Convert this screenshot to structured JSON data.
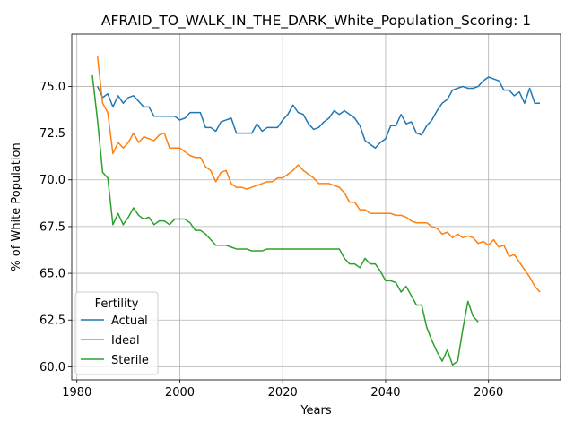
{
  "chart_data": {
    "type": "line",
    "title": "AFRAID_TO_WALK_IN_THE_DARK_White_Population_Scoring: 1",
    "xlabel": "Years",
    "ylabel": "% of White Population",
    "xlim": [
      1979,
      2074
    ],
    "ylim": [
      59.3,
      77.8
    ],
    "xticks": [
      1980,
      2000,
      2020,
      2040,
      2060
    ],
    "yticks": [
      60.0,
      62.5,
      65.0,
      67.5,
      70.0,
      72.5,
      75.0
    ],
    "xtick_labels": [
      "1980",
      "2000",
      "2020",
      "2040",
      "2060"
    ],
    "ytick_labels": [
      "60.0",
      "62.5",
      "65.0",
      "67.5",
      "70.0",
      "72.5",
      "75.0"
    ],
    "grid": true,
    "legend_title": "Fertility",
    "legend_position": "lower-left",
    "series": [
      {
        "name": "Actual",
        "color": "#1f77b4",
        "x": [
          1984,
          1985,
          1986,
          1987,
          1988,
          1989,
          1990,
          1991,
          1992,
          1993,
          1994,
          1995,
          1996,
          1997,
          1998,
          1999,
          2000,
          2001,
          2002,
          2003,
          2004,
          2005,
          2006,
          2007,
          2008,
          2009,
          2010,
          2011,
          2012,
          2013,
          2014,
          2015,
          2016,
          2017,
          2018,
          2019,
          2020,
          2021,
          2022,
          2023,
          2024,
          2025,
          2026,
          2027,
          2028,
          2029,
          2030,
          2031,
          2032,
          2033,
          2034,
          2035,
          2036,
          2037,
          2038,
          2039,
          2040,
          2041,
          2042,
          2043,
          2044,
          2045,
          2046,
          2047,
          2048,
          2049,
          2050,
          2051,
          2052,
          2053,
          2054,
          2055,
          2056,
          2057,
          2058,
          2059,
          2060,
          2061,
          2062,
          2063,
          2064,
          2065,
          2066,
          2067,
          2068,
          2069,
          2070
        ],
        "y": [
          75.0,
          74.4,
          74.6,
          73.9,
          74.5,
          74.1,
          74.4,
          74.5,
          74.2,
          73.9,
          73.9,
          73.4,
          73.4,
          73.4,
          73.4,
          73.4,
          73.2,
          73.3,
          73.6,
          73.6,
          73.6,
          72.8,
          72.8,
          72.6,
          73.1,
          73.2,
          73.3,
          72.5,
          72.5,
          72.5,
          72.5,
          73.0,
          72.6,
          72.8,
          72.8,
          72.8,
          73.2,
          73.5,
          74.0,
          73.6,
          73.5,
          73.0,
          72.7,
          72.8,
          73.1,
          73.3,
          73.7,
          73.5,
          73.7,
          73.5,
          73.3,
          72.9,
          72.1,
          71.9,
          71.7,
          72.0,
          72.2,
          72.9,
          72.9,
          73.5,
          73.0,
          73.1,
          72.5,
          72.4,
          72.9,
          73.2,
          73.7,
          74.1,
          74.3,
          74.8,
          74.9,
          75.0,
          74.9,
          74.9,
          75.0,
          75.3,
          75.5,
          75.4,
          75.3,
          74.8,
          74.8,
          74.5,
          74.7,
          74.1,
          74.9,
          74.1,
          74.1
        ]
      },
      {
        "name": "Ideal",
        "color": "#ff7f0e",
        "x": [
          1984,
          1985,
          1986,
          1987,
          1988,
          1989,
          1990,
          1991,
          1992,
          1993,
          1994,
          1995,
          1996,
          1997,
          1998,
          1999,
          2000,
          2001,
          2002,
          2003,
          2004,
          2005,
          2006,
          2007,
          2008,
          2009,
          2010,
          2011,
          2012,
          2013,
          2014,
          2015,
          2016,
          2017,
          2018,
          2019,
          2020,
          2021,
          2022,
          2023,
          2024,
          2025,
          2026,
          2027,
          2028,
          2029,
          2030,
          2031,
          2032,
          2033,
          2034,
          2035,
          2036,
          2037,
          2038,
          2039,
          2040,
          2041,
          2042,
          2043,
          2044,
          2045,
          2046,
          2047,
          2048,
          2049,
          2050,
          2051,
          2052,
          2053,
          2054,
          2055,
          2056,
          2057,
          2058,
          2059,
          2060,
          2061,
          2062,
          2063,
          2064,
          2065,
          2066,
          2067,
          2068,
          2069,
          2070
        ],
        "y": [
          76.6,
          74.1,
          73.6,
          71.4,
          72.0,
          71.7,
          72.0,
          72.5,
          72.0,
          72.3,
          72.2,
          72.1,
          72.4,
          72.5,
          71.7,
          71.7,
          71.7,
          71.5,
          71.3,
          71.2,
          71.2,
          70.7,
          70.5,
          69.9,
          70.4,
          70.5,
          69.8,
          69.6,
          69.6,
          69.5,
          69.6,
          69.7,
          69.8,
          69.9,
          69.9,
          70.1,
          70.1,
          70.3,
          70.5,
          70.8,
          70.5,
          70.3,
          70.1,
          69.8,
          69.8,
          69.8,
          69.7,
          69.6,
          69.3,
          68.8,
          68.8,
          68.4,
          68.4,
          68.2,
          68.2,
          68.2,
          68.2,
          68.2,
          68.1,
          68.1,
          68.0,
          67.8,
          67.7,
          67.7,
          67.7,
          67.5,
          67.4,
          67.1,
          67.2,
          66.9,
          67.1,
          66.9,
          67.0,
          66.9,
          66.6,
          66.7,
          66.5,
          66.8,
          66.4,
          66.5,
          65.9,
          66.0,
          65.6,
          65.2,
          64.8,
          64.3,
          64.0
        ]
      },
      {
        "name": "Sterile",
        "color": "#2ca02c",
        "x": [
          1983,
          1984,
          1985,
          1986,
          1987,
          1988,
          1989,
          1990,
          1991,
          1992,
          1993,
          1994,
          1995,
          1996,
          1997,
          1998,
          1999,
          2000,
          2001,
          2002,
          2003,
          2004,
          2005,
          2006,
          2007,
          2008,
          2009,
          2010,
          2011,
          2012,
          2013,
          2014,
          2015,
          2016,
          2017,
          2018,
          2019,
          2020,
          2021,
          2022,
          2023,
          2024,
          2025,
          2026,
          2027,
          2028,
          2029,
          2030,
          2031,
          2032,
          2033,
          2034,
          2035,
          2036,
          2037,
          2038,
          2039,
          2040,
          2041,
          2042,
          2043,
          2044,
          2045,
          2046,
          2047,
          2048,
          2049,
          2050,
          2051,
          2052,
          2053,
          2054,
          2055,
          2056,
          2057,
          2058
        ],
        "y": [
          75.6,
          73.2,
          70.4,
          70.1,
          67.6,
          68.2,
          67.6,
          68.0,
          68.5,
          68.1,
          67.9,
          68.0,
          67.6,
          67.8,
          67.8,
          67.6,
          67.9,
          67.9,
          67.9,
          67.7,
          67.3,
          67.3,
          67.1,
          66.8,
          66.5,
          66.5,
          66.5,
          66.4,
          66.3,
          66.3,
          66.3,
          66.2,
          66.2,
          66.2,
          66.3,
          66.3,
          66.3,
          66.3,
          66.3,
          66.3,
          66.3,
          66.3,
          66.3,
          66.3,
          66.3,
          66.3,
          66.3,
          66.3,
          66.3,
          65.8,
          65.5,
          65.5,
          65.3,
          65.8,
          65.5,
          65.5,
          65.1,
          64.6,
          64.6,
          64.5,
          64.0,
          64.3,
          63.8,
          63.3,
          63.3,
          62.1,
          61.4,
          60.8,
          60.3,
          60.9,
          60.1,
          60.3,
          62.0,
          63.5,
          62.7,
          62.4
        ]
      }
    ]
  }
}
